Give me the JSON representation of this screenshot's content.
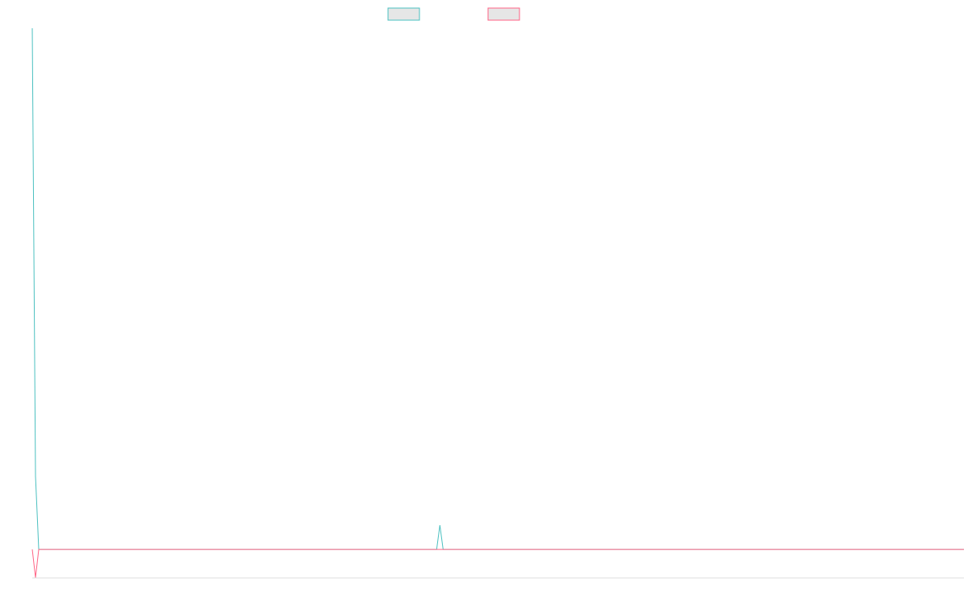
{
  "chart_data": {
    "type": "line",
    "xlim": [
      0,
      288
    ],
    "ylim": [
      -1,
      18.5
    ],
    "series": [
      {
        "color": "#4bc0c0",
        "x": [
          0,
          1,
          2,
          125,
          126,
          127,
          288
        ],
        "values": [
          18.5,
          2.6,
          0,
          0,
          0.86,
          0,
          0
        ]
      },
      {
        "color": "#ff6384",
        "x": [
          0,
          1,
          2,
          288
        ],
        "values": [
          0,
          -1,
          0,
          0
        ]
      }
    ]
  }
}
